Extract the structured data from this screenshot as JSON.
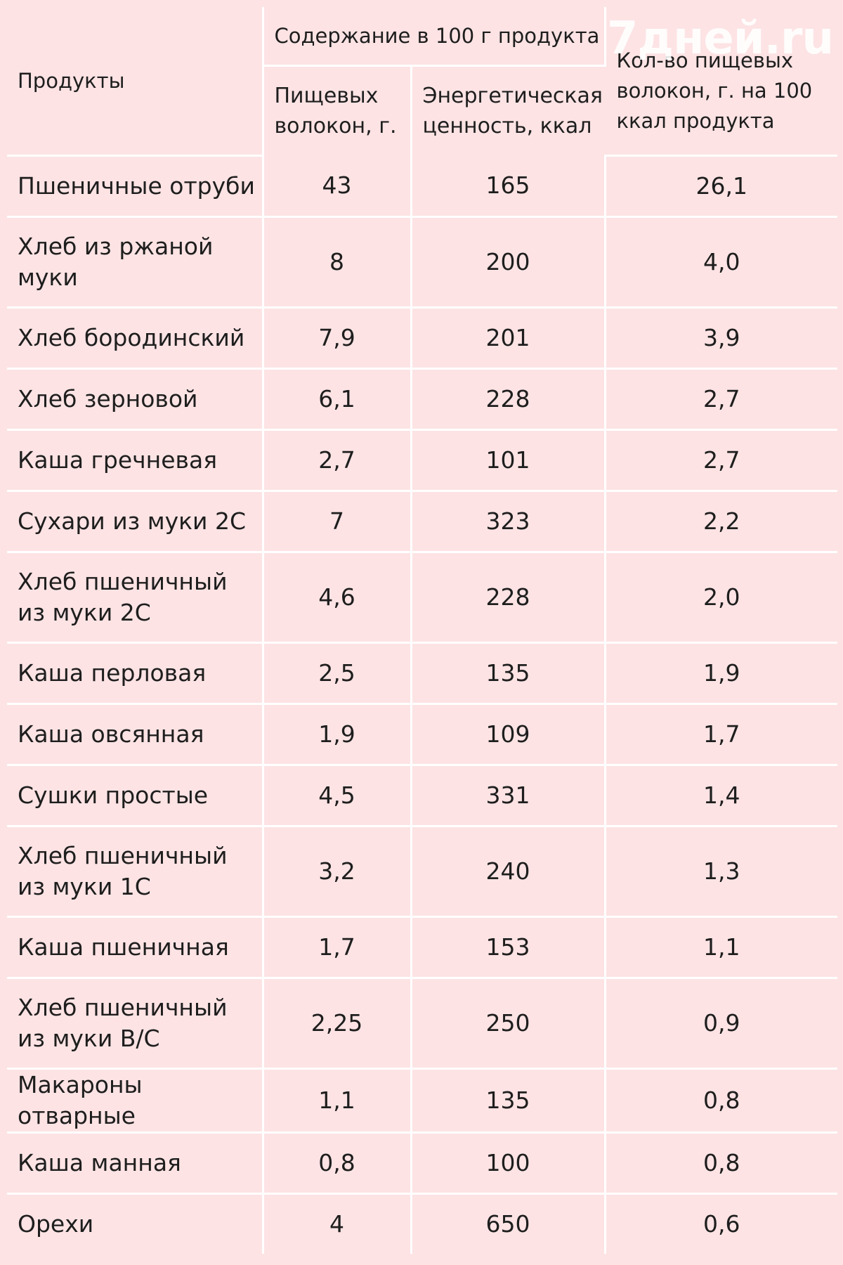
{
  "watermark": "7дней.ru",
  "table": {
    "header": {
      "products": "Продукты",
      "content_group": "Содержание в 100 г продукта",
      "fiber": "Пищевых волокон, г.",
      "energy": "Энергетическая ценность, ккал",
      "per_100kcal": "Кол-во пищевых волокон, г. на 100 ккал продукта"
    },
    "rows": [
      {
        "product": "Пшеничные отруби",
        "fiber": "43",
        "energy": "165",
        "per_100kcal": "26,1"
      },
      {
        "product": "Хлеб из ржаной муки",
        "fiber": "8",
        "energy": "200",
        "per_100kcal": "4,0"
      },
      {
        "product": "Хлеб бородинский",
        "fiber": "7,9",
        "energy": "201",
        "per_100kcal": "3,9"
      },
      {
        "product": "Хлеб зерновой",
        "fiber": "6,1",
        "energy": "228",
        "per_100kcal": "2,7"
      },
      {
        "product": "Каша гречневая",
        "fiber": "2,7",
        "energy": "101",
        "per_100kcal": "2,7"
      },
      {
        "product": "Сухари из муки 2С",
        "fiber": "7",
        "energy": "323",
        "per_100kcal": "2,2"
      },
      {
        "product": "Хлеб пшеничный из муки 2С",
        "fiber": "4,6",
        "energy": "228",
        "per_100kcal": "2,0"
      },
      {
        "product": "Каша перловая",
        "fiber": "2,5",
        "energy": "135",
        "per_100kcal": "1,9"
      },
      {
        "product": "Каша овсянная",
        "fiber": "1,9",
        "energy": "109",
        "per_100kcal": "1,7"
      },
      {
        "product": "Сушки простые",
        "fiber": "4,5",
        "energy": "331",
        "per_100kcal": "1,4"
      },
      {
        "product": "Хлеб пшеничный из муки 1С",
        "fiber": "3,2",
        "energy": "240",
        "per_100kcal": "1,3"
      },
      {
        "product": "Каша пшеничная",
        "fiber": "1,7",
        "energy": "153",
        "per_100kcal": "1,1"
      },
      {
        "product": "Хлеб пшеничный из муки В/С",
        "fiber": "2,25",
        "energy": "250",
        "per_100kcal": "0,9"
      },
      {
        "product": "Макароны отварные",
        "fiber": "1,1",
        "energy": "135",
        "per_100kcal": "0,8"
      },
      {
        "product": "Каша манная",
        "fiber": "0,8",
        "energy": "100",
        "per_100kcal": "0,8"
      },
      {
        "product": "Орехи",
        "fiber": "4",
        "energy": "650",
        "per_100kcal": "0,6"
      }
    ]
  }
}
